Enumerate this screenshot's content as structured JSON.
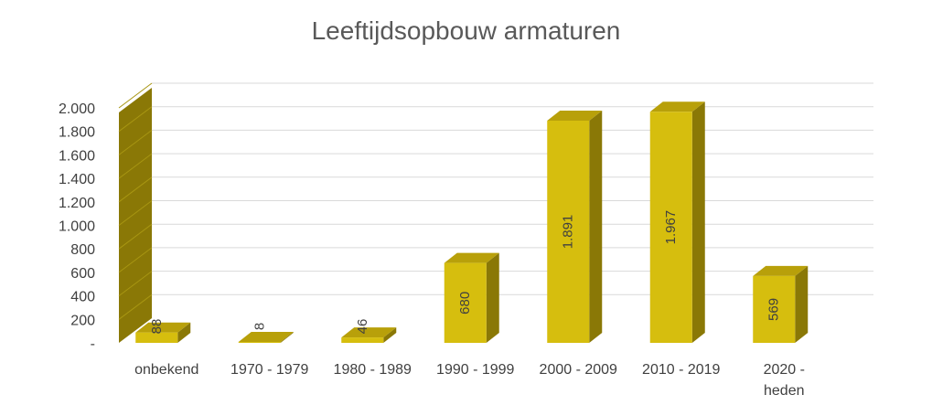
{
  "chart_data": {
    "type": "bar",
    "title": "Leeftijdsopbouw armaturen",
    "categories": [
      "onbekend",
      "1970 - 1979",
      "1980 - 1989",
      "1990 - 1999",
      "2000 - 2009",
      "2010 - 2019",
      "2020 - heden"
    ],
    "category_lines": [
      [
        "onbekend"
      ],
      [
        "1970 - 1979"
      ],
      [
        "1980 - 1989"
      ],
      [
        "1990 - 1999"
      ],
      [
        "2000 - 2009"
      ],
      [
        "2010 - 2019"
      ],
      [
        "2020 -",
        "heden"
      ]
    ],
    "values": [
      88,
      8,
      46,
      680,
      1891,
      1967,
      569
    ],
    "value_labels": [
      "88",
      "8",
      "46",
      "680",
      "1.891",
      "1.967",
      "569"
    ],
    "ylim": [
      0,
      2000
    ],
    "y_ticks": [
      0,
      200,
      400,
      600,
      800,
      1000,
      1200,
      1400,
      1600,
      1800,
      2000
    ],
    "y_tick_labels": [
      "-",
      "200",
      "400",
      "600",
      "800",
      "1.000",
      "1.200",
      "1.400",
      "1.600",
      "1.800",
      "2.000"
    ],
    "grid": true,
    "legend": "none",
    "style": "3d-column",
    "colors": {
      "bar_front": "#D6BE0E",
      "bar_top": "#B8A00A",
      "bar_side": "#8A7806",
      "wall": "#8A7806",
      "grid": "#D9D9D9"
    }
  }
}
